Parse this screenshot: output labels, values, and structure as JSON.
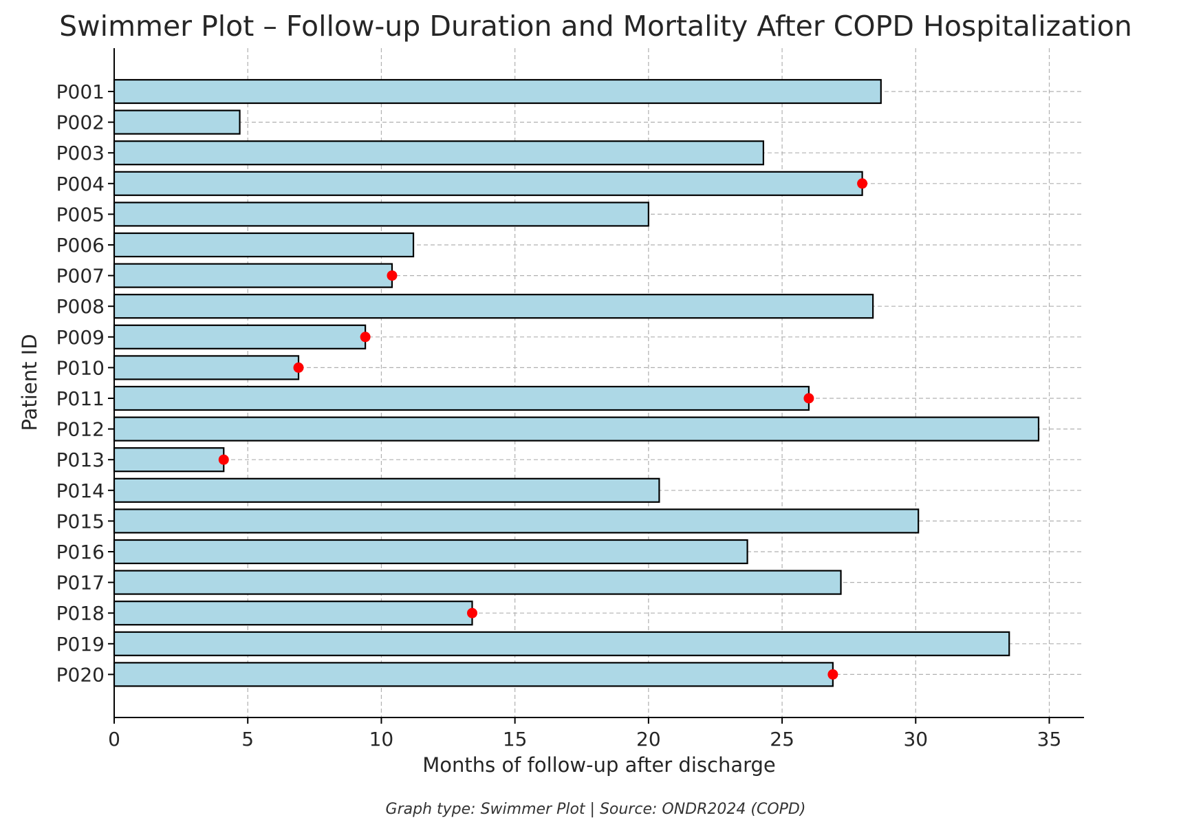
{
  "chart_data": {
    "type": "bar",
    "orientation": "horizontal",
    "title": "Swimmer Plot – Follow-up Duration and Mortality After COPD Hospitalization",
    "xlabel": "Months of follow-up after discharge",
    "ylabel": "Patient ID",
    "caption": "Graph type: Swimmer Plot | Source: ONDR2024 (COPD)",
    "xlim": [
      0,
      36.3
    ],
    "xticks": [
      0,
      5,
      10,
      15,
      20,
      25,
      30,
      35
    ],
    "grid": true,
    "categories": [
      "P001",
      "P002",
      "P003",
      "P004",
      "P005",
      "P006",
      "P007",
      "P008",
      "P009",
      "P010",
      "P011",
      "P012",
      "P013",
      "P014",
      "P015",
      "P016",
      "P017",
      "P018",
      "P019",
      "P020"
    ],
    "values": [
      28.7,
      4.7,
      24.3,
      28.0,
      20.0,
      11.2,
      10.4,
      28.4,
      9.4,
      6.9,
      26.0,
      34.6,
      4.1,
      20.4,
      30.1,
      23.7,
      27.2,
      13.4,
      33.5,
      26.9
    ],
    "death": [
      false,
      false,
      false,
      true,
      false,
      false,
      true,
      false,
      true,
      true,
      true,
      false,
      true,
      false,
      false,
      false,
      false,
      true,
      false,
      true
    ],
    "colors": {
      "bar_fill": "#add8e6",
      "bar_edge": "#000000",
      "death_marker": "#ff0000",
      "grid": "#b0b0b0",
      "text": "#262626"
    }
  }
}
